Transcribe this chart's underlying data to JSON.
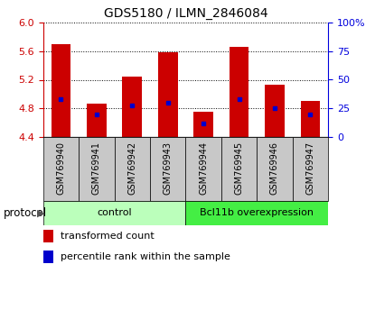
{
  "title": "GDS5180 / ILMN_2846084",
  "samples": [
    "GSM769940",
    "GSM769941",
    "GSM769942",
    "GSM769943",
    "GSM769944",
    "GSM769945",
    "GSM769946",
    "GSM769947"
  ],
  "transformed_count": [
    5.7,
    4.87,
    5.25,
    5.58,
    4.76,
    5.66,
    5.13,
    4.9
  ],
  "percentile_rank": [
    33,
    20,
    28,
    30,
    12,
    33,
    25,
    20
  ],
  "ylim": [
    4.4,
    6.0
  ],
  "yticks_left": [
    4.4,
    4.8,
    5.2,
    5.6,
    6.0
  ],
  "yticks_right": [
    0,
    25,
    50,
    75,
    100
  ],
  "bar_color": "#cc0000",
  "percentile_color": "#0000cc",
  "groups": [
    "control",
    "Bcl11b overexpression"
  ],
  "group_colors": [
    "#bbffbb",
    "#44ee44"
  ],
  "protocol_label": "protocol",
  "legend_transformed": "transformed count",
  "legend_percentile": "percentile rank within the sample",
  "bar_width": 0.55,
  "sample_label_fontsize": 7,
  "title_fontsize": 10,
  "group_fontsize": 8,
  "legend_fontsize": 8,
  "axis_label_fontsize": 8,
  "gray_box_color": "#c8c8c8",
  "grid_color": "#000000",
  "right_axis_color": "#0000dd",
  "left_axis_color": "#cc0000"
}
